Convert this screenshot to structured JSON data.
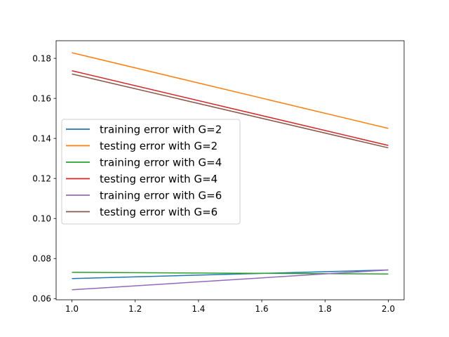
{
  "chart_data": {
    "type": "line",
    "title": "",
    "xlabel": "",
    "ylabel": "",
    "x": [
      1.0,
      2.0
    ],
    "xlim": [
      0.95,
      2.05
    ],
    "ylim": [
      0.0594,
      0.1888
    ],
    "xticks": [
      1.0,
      1.2,
      1.4,
      1.6,
      1.8,
      2.0
    ],
    "xtick_labels": [
      "1.0",
      "1.2",
      "1.4",
      "1.6",
      "1.8",
      "2.0"
    ],
    "yticks": [
      0.06,
      0.08,
      0.1,
      0.12,
      0.14,
      0.16,
      0.18
    ],
    "ytick_labels": [
      "0.06",
      "0.08",
      "0.10",
      "0.12",
      "0.14",
      "0.16",
      "0.18"
    ],
    "grid": false,
    "legend": {
      "placement": "center-left"
    },
    "series": [
      {
        "name": "training error with G=2",
        "color": "#1f77b4",
        "values": [
          0.07,
          0.0743
        ]
      },
      {
        "name": "testing error with G=2",
        "color": "#ff7f0e",
        "values": [
          0.1828,
          0.145
        ]
      },
      {
        "name": "training error with G=4",
        "color": "#2ca02c",
        "values": [
          0.0731,
          0.0723
        ]
      },
      {
        "name": "testing error with G=4",
        "color": "#d62728",
        "values": [
          0.1738,
          0.1365
        ]
      },
      {
        "name": "training error with G=6",
        "color": "#9467bd",
        "values": [
          0.0644,
          0.0743
        ]
      },
      {
        "name": "testing error with G=6",
        "color": "#8c564b",
        "values": [
          0.1722,
          0.1353
        ]
      }
    ]
  }
}
